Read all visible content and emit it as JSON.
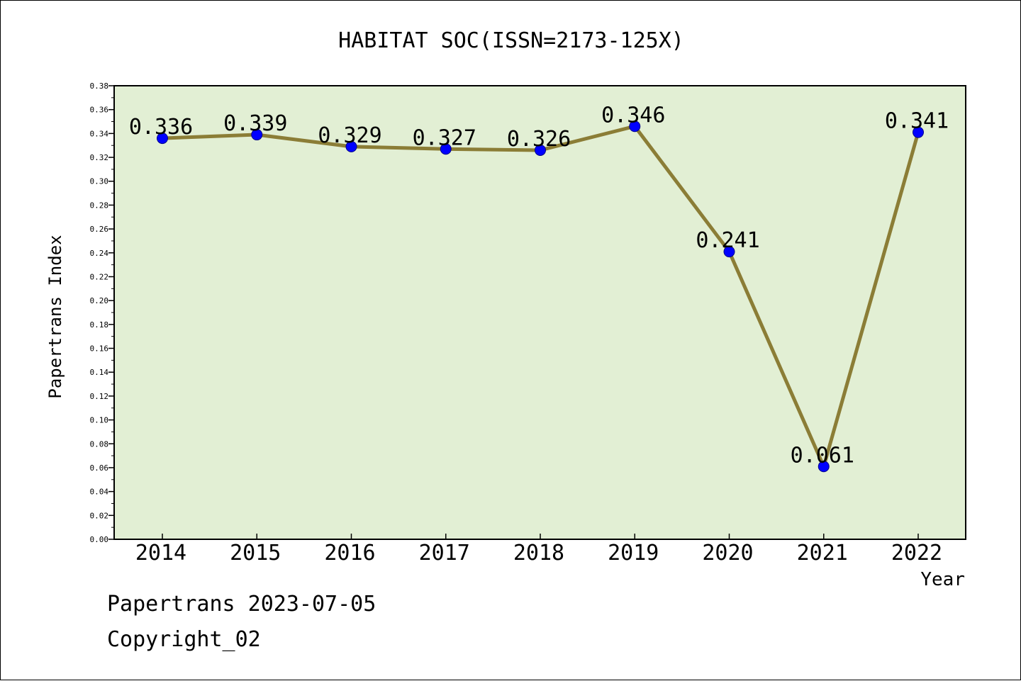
{
  "chart_data": {
    "type": "line",
    "title": "HABITAT SOC(ISSN=2173-125X)",
    "xlabel": "Year",
    "ylabel": "Papertrans Index",
    "categories": [
      "2014",
      "2015",
      "2016",
      "2017",
      "2018",
      "2019",
      "2020",
      "2021",
      "2022"
    ],
    "series": [
      {
        "values": [
          0.336,
          0.339,
          0.329,
          0.327,
          0.326,
          0.346,
          0.241,
          0.061,
          0.341
        ],
        "labels": [
          "0.336",
          "0.339",
          "0.329",
          "0.327",
          "0.326",
          "0.346",
          "0.241",
          "0.061",
          "0.341"
        ]
      }
    ],
    "ylim": [
      0,
      0.38
    ],
    "yticks": [
      "0.00",
      "0.02",
      "0.04",
      "0.06",
      "0.08",
      "0.10",
      "0.12",
      "0.14",
      "0.16",
      "0.18",
      "0.20",
      "0.22",
      "0.24",
      "0.26",
      "0.28",
      "0.30",
      "0.32",
      "0.34",
      "0.36",
      "0.38"
    ],
    "grid": false,
    "colors": {
      "plot_background": "#e2efd4",
      "line": "#8b7d36",
      "marker": "#0000ff"
    }
  },
  "footer": {
    "line1": "Papertrans 2023-07-05",
    "line2": "Copyright_02"
  }
}
